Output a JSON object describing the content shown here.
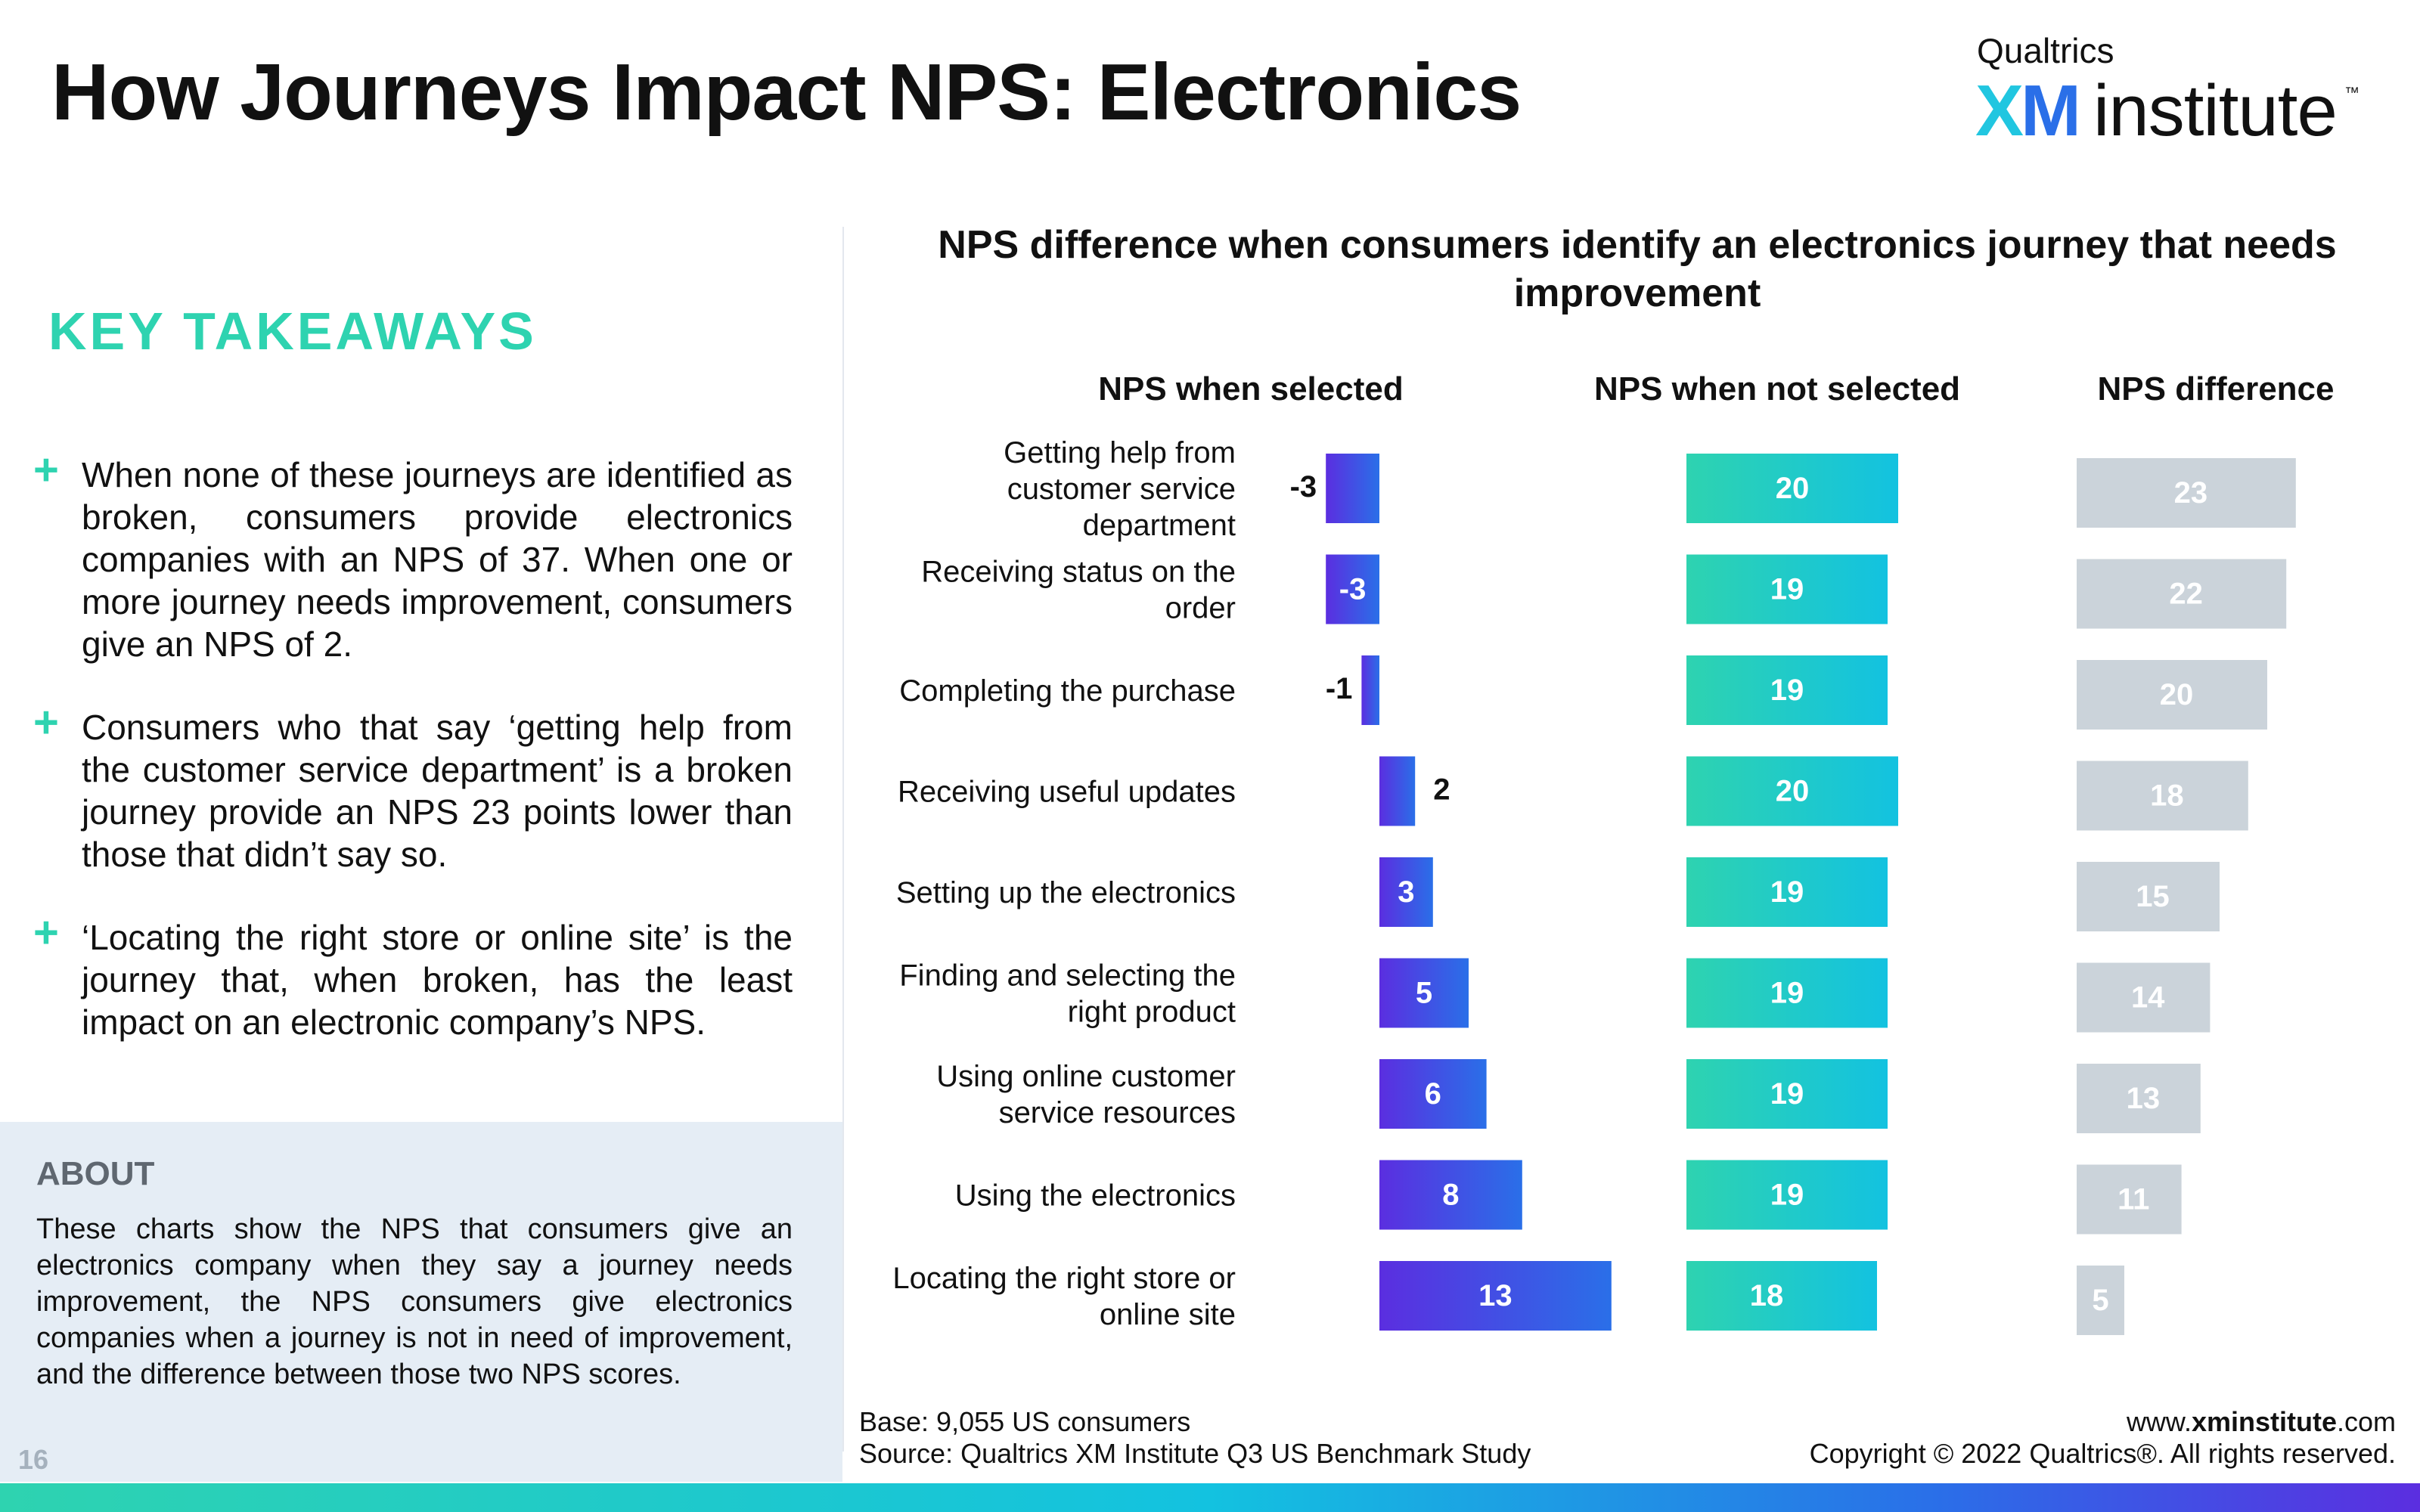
{
  "page": {
    "title": "How Journeys Impact NPS: Electronics",
    "logo": {
      "brand": "Qualtrics",
      "xm": "XM",
      "institute": "institute",
      "tm": "™"
    }
  },
  "takeaways": {
    "heading": "KEY TAKEAWAYS",
    "items": [
      "When none of these journeys are identified as broken, consumers provide electronics companies with an NPS of 37. When one or more journey needs improvement, consumers give an NPS of 2.",
      "Consumers who that say ‘getting help from the customer service department’ is a broken journey provide an NPS 23 points lower than those that didn’t say so.",
      "‘Locating the right store or online site’ is the journey that, when broken, has the least impact on an electronic company’s NPS."
    ],
    "bullet_glyph": "+"
  },
  "about": {
    "heading": "ABOUT",
    "text": "These charts show the NPS that consumers give an electronics company when they say a journey needs improvement, the NPS consumers give electronics companies when a journey is not in need of improvement, and the difference between those two NPS scores."
  },
  "page_number": "16",
  "footer": {
    "base": "Base: 9,055 US consumers",
    "source": "Source: Qualtrics XM Institute Q3 US Benchmark Study",
    "url_prefix": "www.",
    "url_bold": "xminstitute",
    "url_suffix": ".com",
    "copyright": "Copyright © 2022 Qualtrics®. All rights reserved."
  },
  "colors": {
    "accent": "#2ed3b0",
    "selected_gradient": [
      "#5b2ee0",
      "#2a6fe8"
    ],
    "not_selected_gradient": [
      "#2ed3b0",
      "#13c2e0"
    ],
    "difference": "#cbd3da"
  },
  "chart_data": {
    "type": "bar",
    "orientation": "horizontal",
    "title": "NPS difference when consumers identify an electronics journey that needs improvement",
    "categories": [
      "Getting help from customer service department",
      "Receiving status on the order",
      "Completing the purchase",
      "Receiving useful updates",
      "Setting up the electronics",
      "Finding and selecting the right product",
      "Using online customer service resources",
      "Using the electronics",
      "Locating the right store or online site"
    ],
    "category_lines": [
      [
        "Getting help from",
        "customer service",
        "department"
      ],
      [
        "Receiving status on the",
        "order"
      ],
      [
        "Completing the purchase"
      ],
      [
        "Receiving useful updates"
      ],
      [
        "Setting up the electronics"
      ],
      [
        "Finding and selecting the",
        "right product"
      ],
      [
        "Using online customer",
        "service resources"
      ],
      [
        "Using the electronics"
      ],
      [
        "Locating the right store or",
        "online site"
      ]
    ],
    "series": [
      {
        "name": "NPS when selected",
        "values": [
          -3,
          -3,
          -1,
          2,
          3,
          5,
          6,
          8,
          13
        ]
      },
      {
        "name": "NPS when not selected",
        "values": [
          20,
          19,
          19,
          20,
          19,
          19,
          19,
          19,
          18
        ]
      },
      {
        "name": "NPS difference",
        "values": [
          23,
          22,
          20,
          18,
          15,
          14,
          13,
          11,
          5
        ]
      }
    ],
    "grid": false,
    "legend": "column headers"
  }
}
